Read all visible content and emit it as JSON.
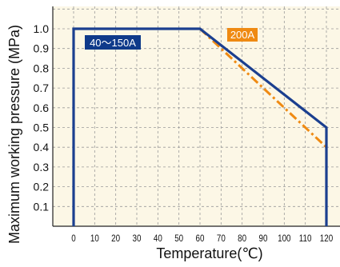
{
  "chart_data": {
    "type": "line",
    "title": "",
    "xlabel": "Temperature(℃)",
    "ylabel": "Maximum working pressure (MPa)",
    "xlim": [
      -12,
      124
    ],
    "ylim": [
      0,
      1.16
    ],
    "x_ticks": [
      0,
      10,
      20,
      30,
      40,
      50,
      60,
      70,
      80,
      90,
      100,
      110,
      120
    ],
    "x_tick_labels": [
      "0",
      "10",
      "20",
      "30",
      "40",
      "50",
      "60",
      "70",
      "80",
      "90",
      "100",
      "110",
      "120"
    ],
    "y_ticks": [
      0.1,
      0.2,
      0.3,
      0.4,
      0.5,
      0.6,
      0.7,
      0.8,
      0.9,
      1.0
    ],
    "y_tick_labels": [
      "0.1",
      "0.2",
      "0.3",
      "0.4",
      "0.5",
      "0.6",
      "0.7",
      "0.8",
      "0.9",
      "1.0"
    ],
    "grid": true,
    "series": [
      {
        "name": "40〜150A",
        "line_style": "solid",
        "color": "#1b3f8f",
        "label_color": "#0f3a8a",
        "x": [
          0,
          0,
          60,
          120,
          120
        ],
        "y": [
          0,
          1.0,
          1.0,
          0.5,
          0
        ]
      },
      {
        "name": "200A",
        "line_style": "dash-dot",
        "color": "#ef8a12",
        "label_color": "#ef8a12",
        "x": [
          60,
          120
        ],
        "y": [
          1.0,
          0.4
        ]
      }
    ],
    "colors": {
      "plot_background": "#fcf7e6",
      "grid": "#9a9a9a",
      "axis": "#222222",
      "text": "#111111"
    }
  }
}
